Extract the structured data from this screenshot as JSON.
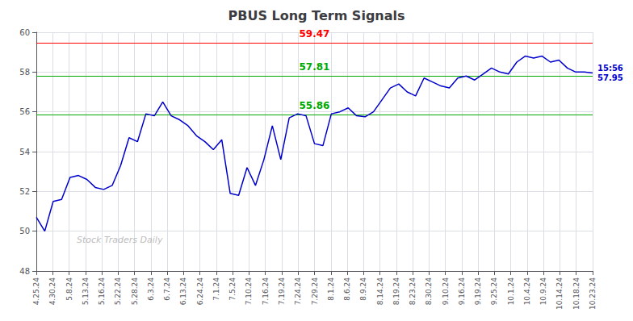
{
  "chart_data": {
    "type": "line",
    "title": "PBUS Long Term Signals",
    "color": "#0000cc",
    "x": [
      0,
      0.5152,
      1.0303,
      1.5455,
      2.0606,
      2.5758,
      3.0909,
      3.6061,
      4.1212,
      4.6364,
      5.1515,
      5.6667,
      6.1818,
      6.697,
      7.2121,
      7.7273,
      8.2424,
      8.7576,
      9.2727,
      9.7879,
      10.303,
      10.8182,
      11.3333,
      11.8485,
      12.3636,
      12.8788,
      13.3939,
      13.9091,
      14.4242,
      14.9394,
      15.4545,
      15.9697,
      16.4848,
      17,
      17.5152,
      18.0303,
      18.5455,
      19.0606,
      19.5758,
      20.0909,
      20.6061,
      21.1212,
      21.6364,
      22.1515,
      22.6667,
      23.1818,
      23.697,
      24.2121,
      24.7273,
      25.2424,
      25.7576,
      26.2727,
      26.7879,
      27.303,
      27.8182,
      28.3333,
      28.8485,
      29.3636,
      29.8788,
      30.3939,
      30.9091,
      31.4242,
      31.9394,
      32.4545,
      32.9697,
      33.4848,
      34
    ],
    "values": [
      50.7,
      50.0,
      51.5,
      51.6,
      52.7,
      52.8,
      52.6,
      52.2,
      52.1,
      52.3,
      53.3,
      54.7,
      54.5,
      55.9,
      55.8,
      56.5,
      55.8,
      55.6,
      55.3,
      54.8,
      54.5,
      54.1,
      54.6,
      51.9,
      51.8,
      53.2,
      52.3,
      53.6,
      55.3,
      53.6,
      55.7,
      55.9,
      55.8,
      54.4,
      54.3,
      55.9,
      56.0,
      56.2,
      55.8,
      55.75,
      56.0,
      56.6,
      57.2,
      57.4,
      57.0,
      56.8,
      57.7,
      57.5,
      57.3,
      57.2,
      57.7,
      57.8,
      57.6,
      57.9,
      58.2,
      58.0,
      57.9,
      58.5,
      58.8,
      58.7,
      58.8,
      58.5,
      58.6,
      58.2,
      58.0,
      58.0,
      57.95
    ],
    "xlim": [
      0,
      34
    ],
    "xticks": [
      {
        "value": 0,
        "label": "4.25.24"
      },
      {
        "value": 1,
        "label": "4.30.24"
      },
      {
        "value": 2,
        "label": "5.8.24"
      },
      {
        "value": 3,
        "label": "5.13.24"
      },
      {
        "value": 4,
        "label": "5.16.24"
      },
      {
        "value": 5,
        "label": "5.22.24"
      },
      {
        "value": 6,
        "label": "5.28.24"
      },
      {
        "value": 7,
        "label": "6.3.24"
      },
      {
        "value": 8,
        "label": "6.7.24"
      },
      {
        "value": 9,
        "label": "6.13.24"
      },
      {
        "value": 10,
        "label": "6.24.24"
      },
      {
        "value": 11,
        "label": "7.1.24"
      },
      {
        "value": 12,
        "label": "7.5.24"
      },
      {
        "value": 13,
        "label": "7.10.24"
      },
      {
        "value": 14,
        "label": "7.16.24"
      },
      {
        "value": 15,
        "label": "7.19.24"
      },
      {
        "value": 16,
        "label": "7.24.24"
      },
      {
        "value": 17,
        "label": "7.29.24"
      },
      {
        "value": 18,
        "label": "8.1.24"
      },
      {
        "value": 19,
        "label": "8.6.24"
      },
      {
        "value": 20,
        "label": "8.9.24"
      },
      {
        "value": 21,
        "label": "8.14.24"
      },
      {
        "value": 22,
        "label": "8.19.24"
      },
      {
        "value": 23,
        "label": "8.23.24"
      },
      {
        "value": 24,
        "label": "8.30.24"
      },
      {
        "value": 25,
        "label": "9.10.24"
      },
      {
        "value": 26,
        "label": "9.16.24"
      },
      {
        "value": 27,
        "label": "9.19.24"
      },
      {
        "value": 28,
        "label": "9.25.24"
      },
      {
        "value": 29,
        "label": "10.1.24"
      },
      {
        "value": 30,
        "label": "10.4.24"
      },
      {
        "value": 31,
        "label": "10.9.24"
      },
      {
        "value": 32,
        "label": "10.14.24"
      },
      {
        "value": 33,
        "label": "10.18.24"
      },
      {
        "value": 34,
        "label": "10.23.24"
      }
    ],
    "ylim": [
      48,
      60
    ],
    "yticks": [
      48,
      50,
      52,
      54,
      56,
      58,
      60
    ],
    "grid": true,
    "hlines": [
      {
        "value": 59.47,
        "label": "59.47",
        "color": "#ff0000"
      },
      {
        "value": 57.81,
        "label": "57.81",
        "color": "#00aa00"
      },
      {
        "value": 55.86,
        "label": "55.86",
        "color": "#00aa00"
      }
    ],
    "annotations": [
      {
        "text": "15:56\n57.95",
        "x": 34,
        "y": 57.95,
        "color": "#0000cc"
      },
      {
        "text": "Stock Traders Daily",
        "color": "#aaaaaa"
      }
    ]
  }
}
